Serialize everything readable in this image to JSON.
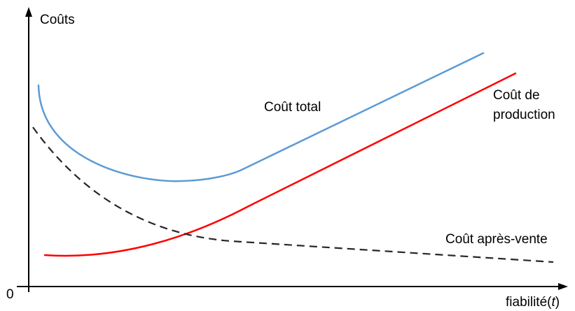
{
  "axes": {
    "y_label": "Coûts",
    "origin_label": "0",
    "x_label_text": "fiabilité",
    "x_label_paren_open": "(",
    "x_label_var": "t",
    "x_label_paren_close": ")"
  },
  "curves": {
    "total": {
      "label": "Coût total",
      "color": "#5b9bd5"
    },
    "production": {
      "label_line1": "Coût de",
      "label_line2": "production",
      "color": "#ff0000"
    },
    "apres_vente": {
      "label": "Coût après-vente",
      "color": "#262626",
      "style": "dashed"
    }
  }
}
